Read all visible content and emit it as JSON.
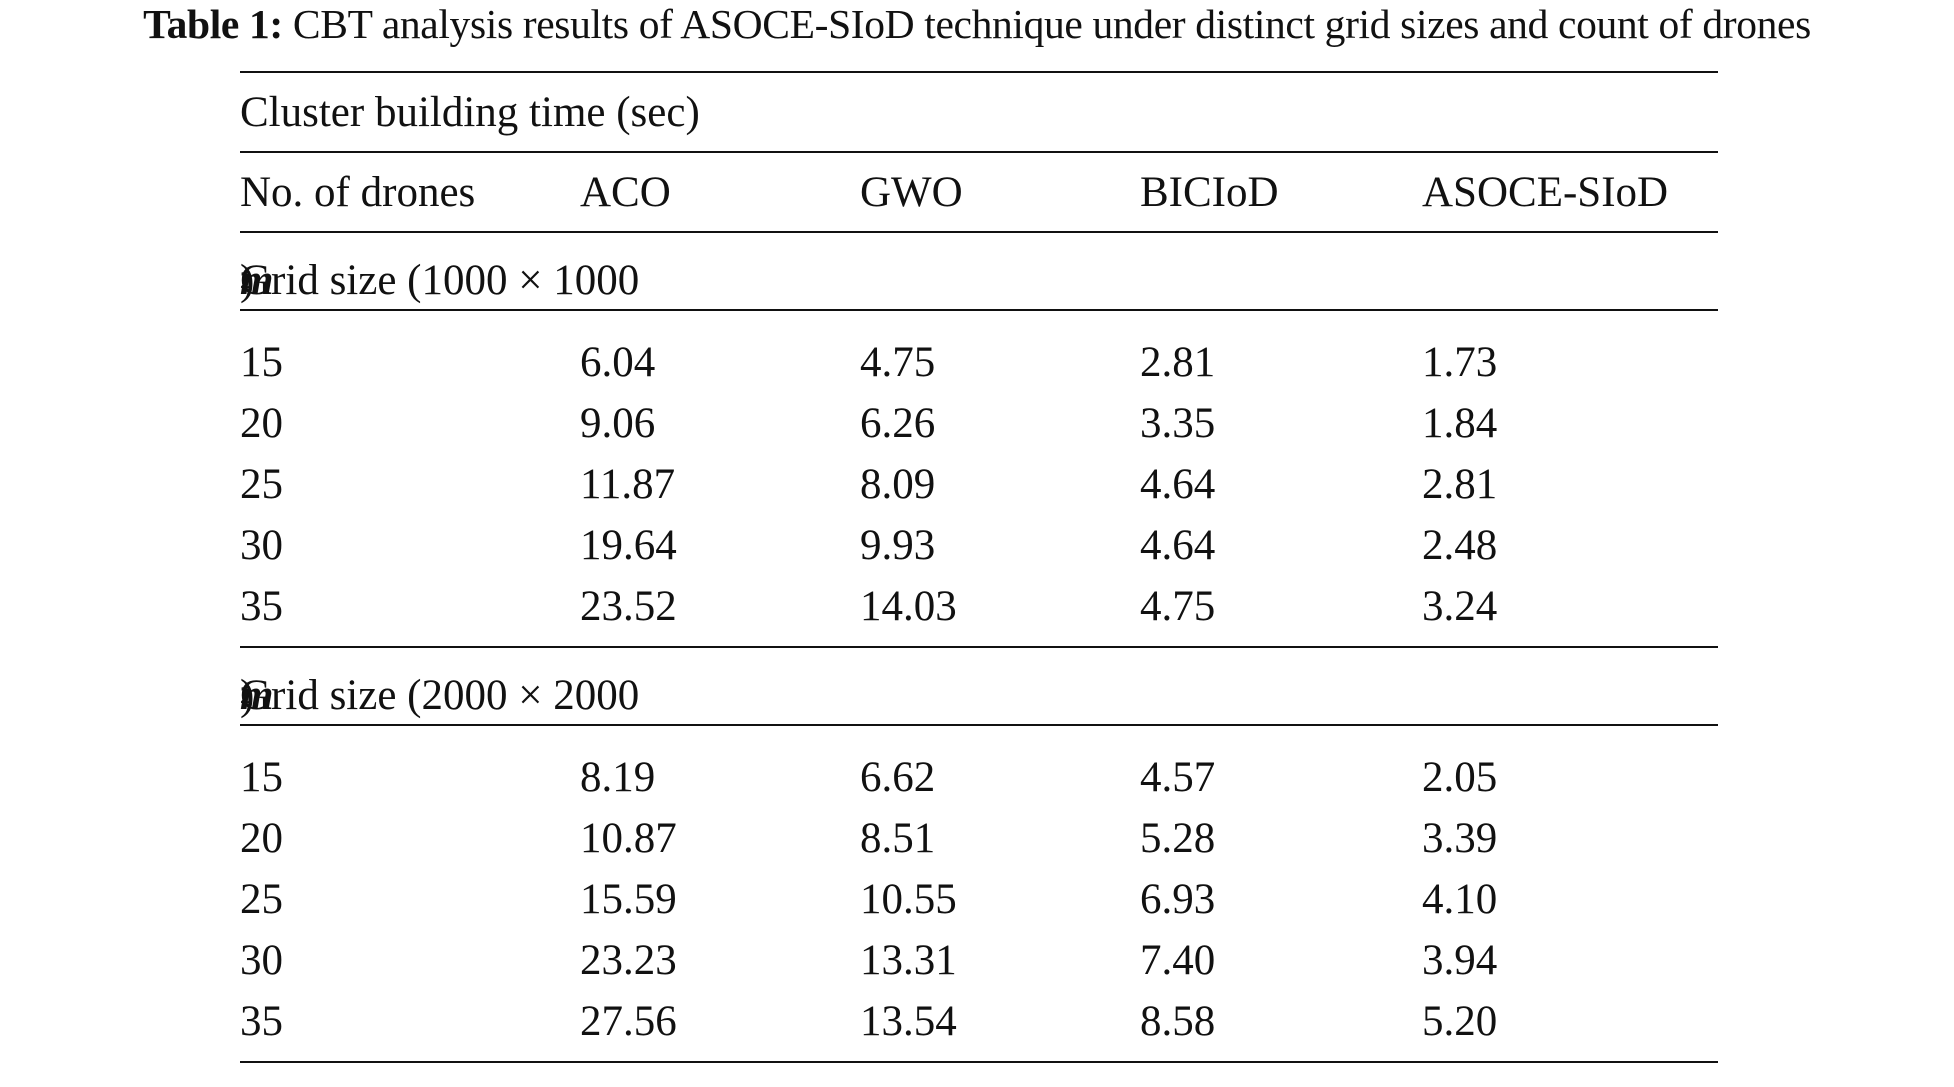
{
  "caption": {
    "label": "Table 1:",
    "text": "CBT analysis results of ASOCE-SIoD technique under distinct grid sizes and count of drones"
  },
  "table": {
    "title": "Cluster building time (sec)",
    "headers": [
      "No. of drones",
      "ACO",
      "GWO",
      "BICIoD",
      "ASOCE-SIoD"
    ],
    "sections": [
      {
        "label_prefix": "Grid size (1000 × 1000 ",
        "unit": "m",
        "exponent": "2",
        "label_suffix": ")",
        "rows": [
          [
            "15",
            "6.04",
            "4.75",
            "2.81",
            "1.73"
          ],
          [
            "20",
            "9.06",
            "6.26",
            "3.35",
            "1.84"
          ],
          [
            "25",
            "11.87",
            "8.09",
            "4.64",
            "2.81"
          ],
          [
            "30",
            "19.64",
            "9.93",
            "4.64",
            "2.48"
          ],
          [
            "35",
            "23.52",
            "14.03",
            "4.75",
            "3.24"
          ]
        ]
      },
      {
        "label_prefix": "Grid size (2000 × 2000 ",
        "unit": "m",
        "exponent": "2",
        "label_suffix": ")",
        "rows": [
          [
            "15",
            "8.19",
            "6.62",
            "4.57",
            "2.05"
          ],
          [
            "20",
            "10.87",
            "8.51",
            "5.28",
            "3.39"
          ],
          [
            "25",
            "15.59",
            "10.55",
            "6.93",
            "4.10"
          ],
          [
            "30",
            "23.23",
            "13.31",
            "7.40",
            "3.94"
          ],
          [
            "35",
            "27.56",
            "13.54",
            "8.58",
            "5.20"
          ]
        ]
      }
    ]
  }
}
